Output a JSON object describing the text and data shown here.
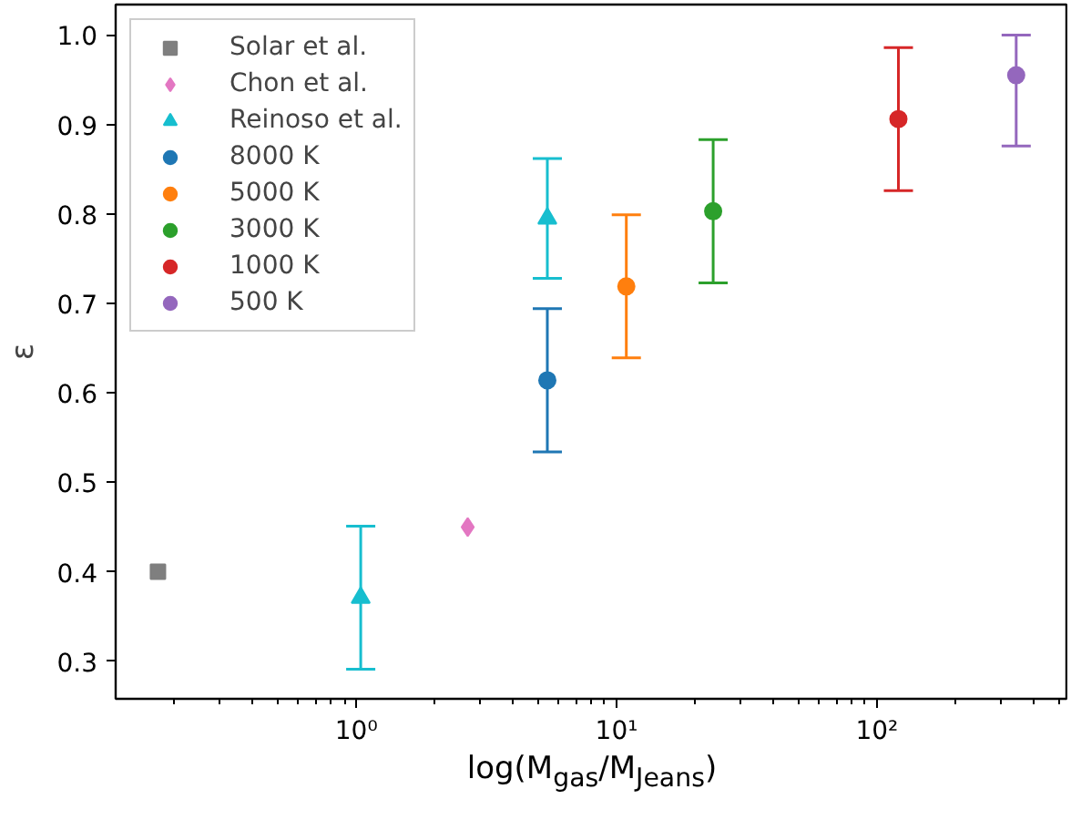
{
  "chart_data": {
    "type": "scatter",
    "xlabel": "log(M$_{gas}$/M$_{Jeans}$)",
    "ylabel": "ε",
    "log": "x",
    "grid": false,
    "legend": "top left",
    "xlim": [
      0.119,
      535
    ],
    "ylim": [
      0.258,
      1.034
    ],
    "xticks": [
      {
        "value": 1,
        "label": "10⁰"
      },
      {
        "value": 10,
        "label": "10¹"
      },
      {
        "value": 100,
        "label": "10²"
      }
    ],
    "yticks": [
      0.3,
      0.4,
      0.5,
      0.6,
      0.7,
      0.8,
      0.9,
      {
        "value": 1.0,
        "label": "1.0"
      }
    ],
    "series": [
      {
        "name": "Solar et al.",
        "color": "#7f7f7f",
        "marker": "square",
        "x": [
          0.173
        ],
        "values": [
          0.4
        ]
      },
      {
        "name": "Chon et al.",
        "color": "#e377c2",
        "marker": "diamond",
        "x": [
          2.68
        ],
        "values": [
          0.45
        ]
      },
      {
        "name": "Reinoso et al.",
        "color": "#17becf",
        "marker": "triangle",
        "x": [
          1.04,
          5.42
        ],
        "values": [
          0.371,
          0.795
        ],
        "errors": [
          0.08,
          0.067
        ]
      },
      {
        "name": "8000 K",
        "color": "#1f77b4",
        "marker": "circle",
        "x": [
          5.42
        ],
        "values": [
          0.614
        ],
        "errors": [
          0.08
        ]
      },
      {
        "name": "5000 K",
        "color": "#ff7f0e",
        "marker": "circle",
        "x": [
          10.9
        ],
        "values": [
          0.719
        ],
        "errors": [
          0.08
        ]
      },
      {
        "name": "3000 K",
        "color": "#2ca02c",
        "marker": "circle",
        "x": [
          23.5
        ],
        "values": [
          0.803
        ],
        "errors": [
          0.08
        ]
      },
      {
        "name": "1000 K",
        "color": "#d62728",
        "marker": "circle",
        "x": [
          121
        ],
        "values": [
          0.906
        ],
        "errors": [
          0.08
        ]
      },
      {
        "name": "500 K",
        "color": "#9467bd",
        "marker": "circle",
        "x": [
          343
        ],
        "values": [
          0.955
        ],
        "errors": [
          [
            0.876,
            1.0
          ]
        ]
      }
    ]
  }
}
